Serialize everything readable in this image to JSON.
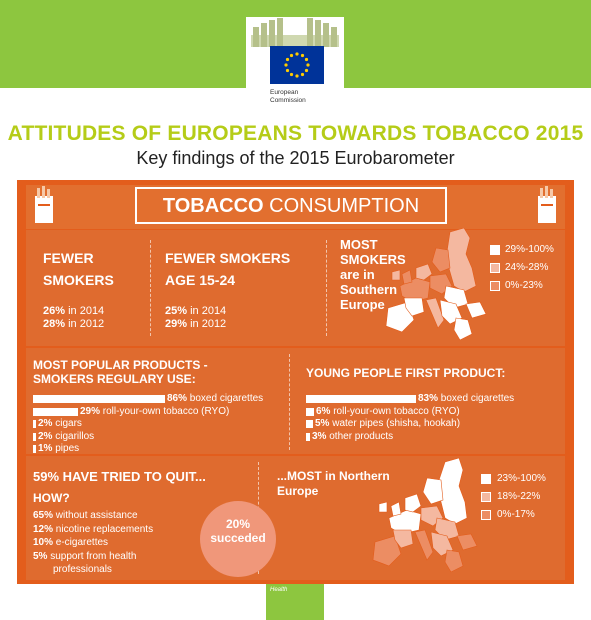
{
  "header": {
    "logo_line1": "European",
    "logo_line2": "Commission",
    "title": "ATTITUDES OF EUROPEANS TOWARDS TOBACCO 2015",
    "subtitle": "Key findings of the 2015 Eurobarometer"
  },
  "section_title": {
    "bold": "TOBACCO",
    "rest": " CONSUMPTION"
  },
  "fewer_smokers": {
    "heading_line1": "FEWER",
    "heading_line2": "SMOKERS",
    "stat1_value": "26%",
    "stat1_text": " in 2014",
    "stat2_value": "28%",
    "stat2_text": " in 2012"
  },
  "fewer_young": {
    "heading_line1": "FEWER SMOKERS",
    "heading_line2": "AGE 15-24",
    "stat1_value": "25%",
    "stat1_text": " in 2014",
    "stat2_value": "29%",
    "stat2_text": " in 2012"
  },
  "south": {
    "line1": "MOST",
    "line2": "SMOKERS",
    "line3": "are in",
    "line4": "Southern",
    "line5": "Europe",
    "legend": [
      {
        "label": "29%-100%",
        "color": "#ffffff"
      },
      {
        "label": "24%-28%",
        "color": "#f4b8a0"
      },
      {
        "label": "0%-23%",
        "color": "#ec8d63"
      }
    ]
  },
  "popular": {
    "heading_line1": "MOST POPULAR PRODUCTS -",
    "heading_line2": "SMOKERS REGULARY USE:",
    "items": [
      {
        "value": "86%",
        "label": " boxed cigarettes",
        "pct": 86
      },
      {
        "value": "29%",
        "label": " roll-your-own tobacco (RYO)",
        "pct": 29
      },
      {
        "value": "2%",
        "label": " cigars",
        "pct": 2
      },
      {
        "value": "2%",
        "label": " cigarillos",
        "pct": 2
      },
      {
        "value": "1%",
        "label": " pipes",
        "pct": 1
      }
    ]
  },
  "young_first": {
    "heading": "YOUNG PEOPLE FIRST PRODUCT:",
    "items": [
      {
        "value": "83%",
        "label": " boxed cigarettes",
        "pct": 83
      },
      {
        "value": "6%",
        "label": " roll-your-own tobacco (RYO)",
        "pct": 6
      },
      {
        "value": "5%",
        "label": " water pipes (shisha, hookah)",
        "pct": 5
      },
      {
        "value": "3%",
        "label": " other products",
        "pct": 3
      }
    ]
  },
  "quit": {
    "heading": "59% HAVE TRIED TO QUIT...",
    "how": "HOW?",
    "items": [
      {
        "value": "65%",
        "label": " without assistance"
      },
      {
        "value": "12%",
        "label": " nicotine replacements"
      },
      {
        "value": "10%",
        "label": " e-cigarettes"
      },
      {
        "value": "5%",
        "label": " support from health"
      }
    ],
    "item4_line2": "professionals",
    "circle_line1": "20%",
    "circle_line2": "succeded"
  },
  "north": {
    "line1": "...MOST in Northern",
    "line2": "Europe",
    "legend": [
      {
        "label": "23%-100%",
        "color": "#ffffff"
      },
      {
        "label": "18%-22%",
        "color": "#f4b8a0"
      },
      {
        "label": "0%-17%",
        "color": "#ec8d63"
      }
    ]
  },
  "footer": {
    "label": "Health"
  }
}
